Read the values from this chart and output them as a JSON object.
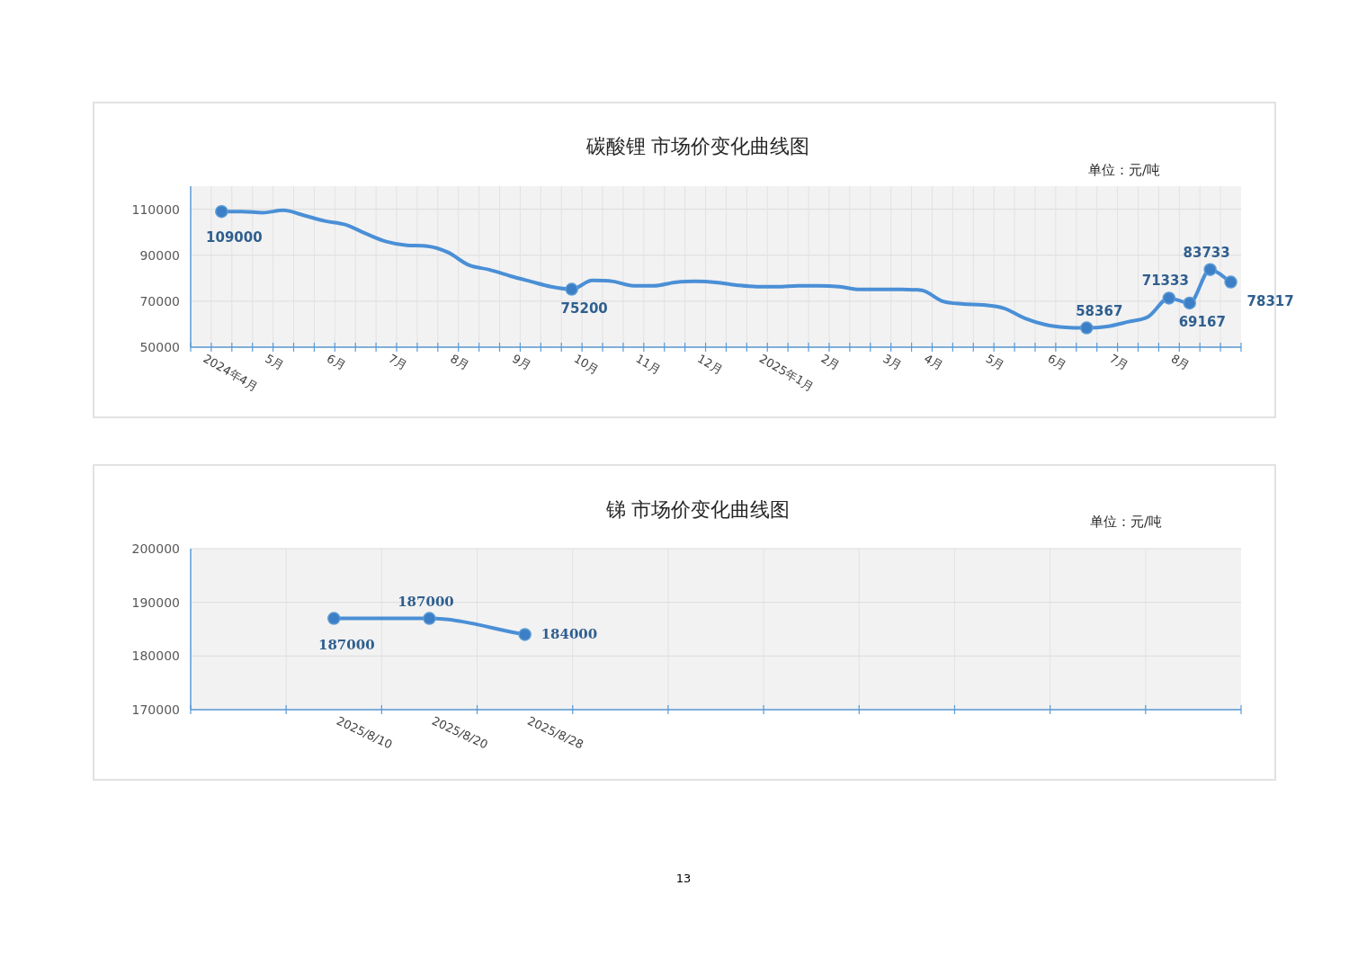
{
  "chart_data": [
    {
      "type": "line",
      "title": "碳酸锂 市场价变化曲线图",
      "subtitle": "单位：元/吨",
      "categories": [
        "2024年4月",
        null,
        null,
        "5月",
        null,
        null,
        "6月",
        null,
        null,
        "7月",
        null,
        null,
        "8月",
        null,
        null,
        "9月",
        null,
        null,
        "10月",
        null,
        null,
        "11月",
        null,
        null,
        "12月",
        null,
        null,
        "2025年1月",
        null,
        null,
        "2月",
        null,
        null,
        "3月",
        null,
        "4月",
        null,
        null,
        "5月",
        null,
        null,
        "6月",
        null,
        null,
        "7月",
        null,
        null,
        "8月",
        null,
        null,
        null
      ],
      "series": [
        {
          "color": "#4a8fd6",
          "values": [
            null,
            109000,
            109000,
            108500,
            109500,
            107300,
            104900,
            103300,
            99400,
            95900,
            94300,
            93900,
            91200,
            85700,
            83700,
            81000,
            78600,
            76300,
            75200,
            79000,
            78600,
            76700,
            76700,
            78200,
            78600,
            78200,
            77000,
            76300,
            76300,
            76700,
            76700,
            76300,
            75100,
            75100,
            75100,
            74700,
            70000,
            68800,
            68400,
            66900,
            62600,
            59800,
            58600,
            58367,
            59000,
            61000,
            63300,
            71333,
            69167,
            83733,
            78317
          ],
          "value_labels": [
            null,
            "109000",
            null,
            null,
            null,
            null,
            null,
            null,
            null,
            null,
            null,
            null,
            null,
            null,
            null,
            null,
            null,
            null,
            "75200",
            null,
            null,
            null,
            null,
            null,
            null,
            null,
            null,
            null,
            null,
            null,
            null,
            null,
            null,
            null,
            null,
            null,
            null,
            null,
            null,
            null,
            null,
            null,
            null,
            "58367",
            null,
            null,
            null,
            "71333",
            "69167",
            "83733",
            "78317"
          ]
        }
      ],
      "ylim": [
        50000,
        120000
      ],
      "yticks": [
        50000,
        70000,
        90000,
        110000
      ],
      "grid": true
    },
    {
      "type": "line",
      "title": "锑  市场价变化曲线图",
      "subtitle": "单位：元/吨",
      "categories": [
        null,
        "2025/8/10",
        "2025/8/20",
        "2025/8/28",
        null,
        null,
        null,
        null,
        null,
        null,
        null
      ],
      "series": [
        {
          "color": "#4a8fd6",
          "values": [
            null,
            187000,
            187000,
            184000,
            null,
            null,
            null,
            null,
            null,
            null,
            null
          ]
        }
      ],
      "ylim": [
        170000,
        200000
      ],
      "yticks": [
        170000,
        180000,
        190000,
        200000
      ],
      "grid": true,
      "data_labels": true,
      "marker": "circle",
      "annotations": [
        "13"
      ]
    }
  ]
}
